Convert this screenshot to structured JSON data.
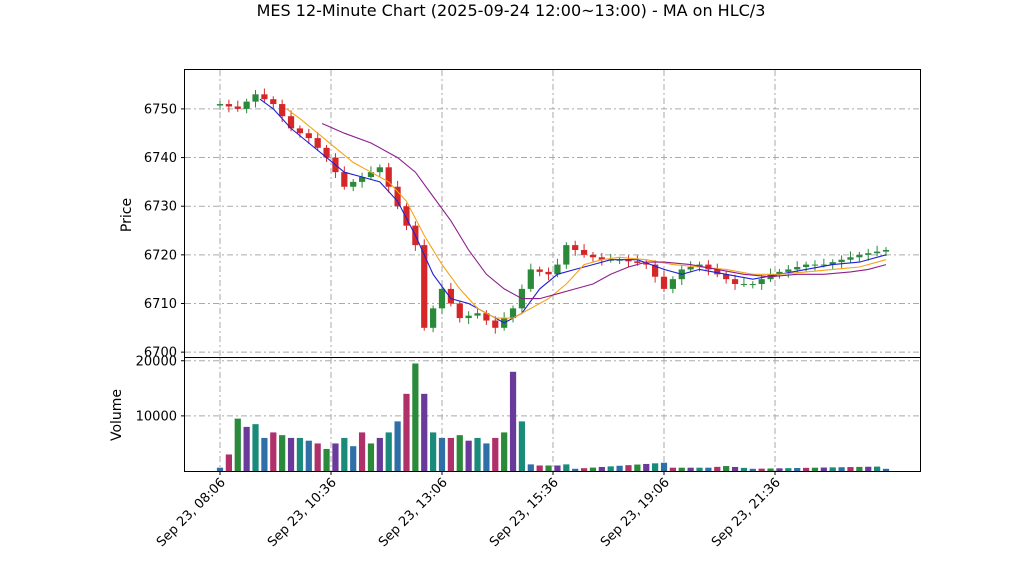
{
  "chart_data": {
    "type": "candlestick",
    "title": "MES 12-Minute Chart (2025-09-24 12:00~13:00) - MA on HLC/3",
    "price_panel": {
      "ylabel": "Price",
      "ylim": [
        6699,
        6758
      ],
      "yticks": [
        6700,
        6710,
        6720,
        6730,
        6740,
        6750
      ],
      "grid": true,
      "up_color": "#2a8a3a",
      "down_color": "#d62728"
    },
    "volume_panel": {
      "ylabel": "Volume",
      "ylim": [
        0,
        20500
      ],
      "yticks": [
        10000,
        20000
      ],
      "grid": true
    },
    "x_tick_labels": [
      "Sep 23, 08:06",
      "Sep 23, 10:36",
      "Sep 23, 13:06",
      "Sep 23, 15:36",
      "Sep 23, 19:06",
      "Sep 23, 21:36"
    ],
    "x_tick_bar_index": [
      0,
      12.5,
      25,
      37.5,
      50,
      62.5
    ],
    "bar_count": 76,
    "close_anchors": [
      [
        0,
        6751
      ],
      [
        2,
        6750
      ],
      [
        4,
        6753
      ],
      [
        6,
        6751
      ],
      [
        8,
        6746
      ],
      [
        10,
        6744
      ],
      [
        12,
        6740
      ],
      [
        14,
        6734
      ],
      [
        16,
        6736
      ],
      [
        18,
        6738
      ],
      [
        20,
        6730
      ],
      [
        22,
        6722
      ],
      [
        23,
        6705
      ],
      [
        25,
        6713
      ],
      [
        27,
        6707
      ],
      [
        29,
        6708
      ],
      [
        31,
        6705
      ],
      [
        33,
        6709
      ],
      [
        35,
        6717
      ],
      [
        37,
        6716
      ],
      [
        38,
        6718
      ],
      [
        39,
        6722
      ],
      [
        41,
        6720
      ],
      [
        43,
        6719
      ],
      [
        45,
        6719
      ],
      [
        48,
        6718
      ],
      [
        50,
        6713
      ],
      [
        52,
        6717
      ],
      [
        54,
        6718
      ],
      [
        56,
        6716
      ],
      [
        58,
        6714
      ],
      [
        60,
        6714
      ],
      [
        62,
        6716
      ],
      [
        64,
        6717
      ],
      [
        66,
        6718
      ],
      [
        68,
        6718
      ],
      [
        70,
        6719
      ],
      [
        72,
        6720
      ],
      [
        75,
        6721
      ]
    ],
    "volume_anchors": [
      [
        0,
        600
      ],
      [
        1,
        3000
      ],
      [
        2,
        9500
      ],
      [
        3,
        8000
      ],
      [
        4,
        8500
      ],
      [
        5,
        6000
      ],
      [
        6,
        7000
      ],
      [
        7,
        6500
      ],
      [
        8,
        6000
      ],
      [
        9,
        6000
      ],
      [
        10,
        5500
      ],
      [
        11,
        5000
      ],
      [
        12,
        4000
      ],
      [
        13,
        5000
      ],
      [
        14,
        6000
      ],
      [
        15,
        4500
      ],
      [
        16,
        7000
      ],
      [
        17,
        5000
      ],
      [
        18,
        6000
      ],
      [
        19,
        7000
      ],
      [
        20,
        9000
      ],
      [
        21,
        14000
      ],
      [
        22,
        19500
      ],
      [
        23,
        14000
      ],
      [
        24,
        7000
      ],
      [
        25,
        6000
      ],
      [
        26,
        6000
      ],
      [
        27,
        6500
      ],
      [
        28,
        5500
      ],
      [
        29,
        6000
      ],
      [
        30,
        5000
      ],
      [
        31,
        6000
      ],
      [
        32,
        7000
      ],
      [
        33,
        18000
      ],
      [
        34,
        9000
      ],
      [
        35,
        1200
      ],
      [
        36,
        1000
      ],
      [
        37,
        1000
      ],
      [
        38,
        1000
      ],
      [
        39,
        1200
      ],
      [
        40,
        400
      ],
      [
        50,
        1500
      ],
      [
        51,
        600
      ],
      [
        55,
        600
      ],
      [
        57,
        900
      ],
      [
        60,
        400
      ],
      [
        74,
        800
      ],
      [
        75,
        400
      ]
    ],
    "moving_averages": [
      {
        "color": "#1f1fd6",
        "points": [
          [
            4.5,
            6752
          ],
          [
            6,
            6750
          ],
          [
            8,
            6746
          ],
          [
            10,
            6743
          ],
          [
            12,
            6740
          ],
          [
            14,
            6737
          ],
          [
            16,
            6736
          ],
          [
            18,
            6735
          ],
          [
            20,
            6731
          ],
          [
            22,
            6724
          ],
          [
            24,
            6716
          ],
          [
            26,
            6711
          ],
          [
            28,
            6710
          ],
          [
            30,
            6708
          ],
          [
            32,
            6706
          ],
          [
            34,
            6708
          ],
          [
            36,
            6713
          ],
          [
            38,
            6716
          ],
          [
            40,
            6717
          ],
          [
            42,
            6718
          ],
          [
            44,
            6719
          ],
          [
            47,
            6719
          ],
          [
            50,
            6717
          ],
          [
            52,
            6716
          ],
          [
            54,
            6717
          ],
          [
            57,
            6716
          ],
          [
            60,
            6715
          ],
          [
            63,
            6716
          ],
          [
            66,
            6717
          ],
          [
            69,
            6718
          ],
          [
            72,
            6718.5
          ],
          [
            75,
            6720
          ]
        ]
      },
      {
        "color": "#f5a318",
        "points": [
          [
            7.5,
            6750
          ],
          [
            9,
            6748
          ],
          [
            11,
            6745
          ],
          [
            13,
            6742
          ],
          [
            15,
            6739
          ],
          [
            17,
            6737
          ],
          [
            19,
            6735
          ],
          [
            21,
            6731
          ],
          [
            23,
            6724
          ],
          [
            25,
            6718
          ],
          [
            27,
            6713
          ],
          [
            29,
            6709
          ],
          [
            31,
            6707
          ],
          [
            33,
            6707
          ],
          [
            35,
            6709
          ],
          [
            37,
            6711
          ],
          [
            39,
            6714
          ],
          [
            41,
            6718
          ],
          [
            43,
            6719
          ],
          [
            45,
            6719.5
          ],
          [
            48,
            6719
          ],
          [
            51,
            6718
          ],
          [
            54,
            6717.5
          ],
          [
            57,
            6717
          ],
          [
            60,
            6716
          ],
          [
            63,
            6716
          ],
          [
            66,
            6716.5
          ],
          [
            69,
            6717
          ],
          [
            72,
            6717.5
          ],
          [
            75,
            6719
          ]
        ]
      },
      {
        "color": "#8e1f8e",
        "points": [
          [
            11.5,
            6747
          ],
          [
            14,
            6745
          ],
          [
            17,
            6743
          ],
          [
            20,
            6740
          ],
          [
            22,
            6737
          ],
          [
            24,
            6732
          ],
          [
            26,
            6727
          ],
          [
            28,
            6721
          ],
          [
            30,
            6716
          ],
          [
            32,
            6713
          ],
          [
            34,
            6711
          ],
          [
            36,
            6711
          ],
          [
            38,
            6712
          ],
          [
            40,
            6713
          ],
          [
            42,
            6714
          ],
          [
            44,
            6716
          ],
          [
            46,
            6717.5
          ],
          [
            48,
            6718.5
          ],
          [
            50,
            6718.5
          ],
          [
            53,
            6718
          ],
          [
            56,
            6717
          ],
          [
            59,
            6716
          ],
          [
            62,
            6715.5
          ],
          [
            65,
            6716
          ],
          [
            68,
            6716
          ],
          [
            71,
            6716.5
          ],
          [
            73,
            6717
          ],
          [
            75,
            6718
          ]
        ]
      }
    ]
  }
}
